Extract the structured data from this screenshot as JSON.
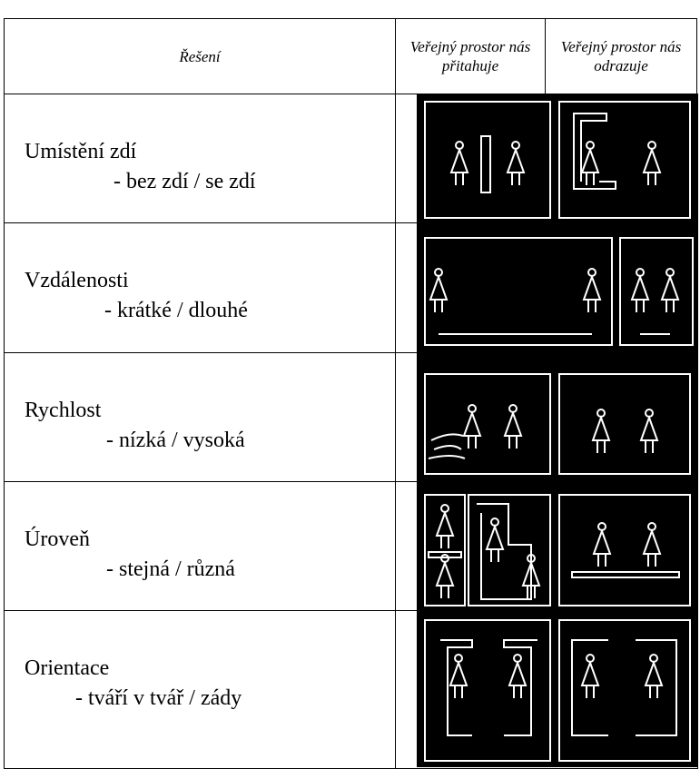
{
  "header": {
    "columns": [
      "Řešení",
      "Veřejný prostor nás přitahuje",
      "Veřejný prostor nás odrazuje"
    ]
  },
  "rows": [
    {
      "title": "Umístění zdí",
      "detail": "- bez zdí / se zdí"
    },
    {
      "title": "Vzdálenosti",
      "detail": "- krátké / dlouhé"
    },
    {
      "title": "Rychlost",
      "detail": "- nízká / vysoká"
    },
    {
      "title": "Úroveň",
      "detail": "- stejná / různá"
    },
    {
      "title": "Orientace",
      "detail": "- tváří v tvář / zády"
    }
  ]
}
